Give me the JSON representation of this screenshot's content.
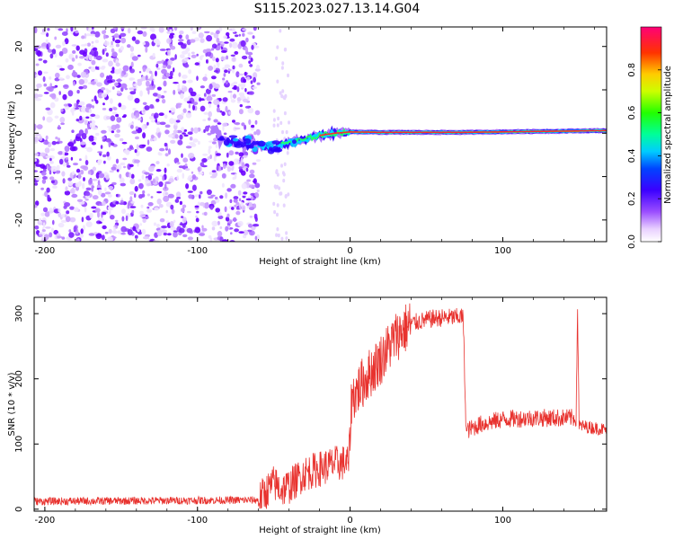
{
  "title": "S115.2023.027.13.14.G04",
  "colors": {
    "snr_line": "#e8322e",
    "ridge": "#ff2a2a"
  },
  "chart_data": [
    {
      "type": "heatmap",
      "xlabel": "Height of straight line (km)",
      "ylabel": "Frequency (Hz)",
      "xlim": [
        -207,
        168
      ],
      "ylim": [
        -25,
        24.5
      ],
      "xticks": [
        -200,
        -100,
        0,
        100
      ],
      "yticks": [
        -20,
        -10,
        0,
        10,
        20
      ],
      "colorbar": {
        "label": "Normalized spectral amplitude",
        "range": [
          0,
          1
        ],
        "ticks": [
          0.0,
          0.2,
          0.4,
          0.6,
          0.8
        ]
      },
      "noise_region_x": [
        -207,
        -60
      ],
      "ridge": [
        {
          "x": -85,
          "f": -1.5
        },
        {
          "x": -70,
          "f": -2.5
        },
        {
          "x": -60,
          "f": -2.8
        },
        {
          "x": -50,
          "f": -3.5
        },
        {
          "x": -40,
          "f": -2.0
        },
        {
          "x": -30,
          "f": -1.5
        },
        {
          "x": -20,
          "f": -0.5
        },
        {
          "x": -10,
          "f": 0.0
        },
        {
          "x": 0,
          "f": 0.3
        },
        {
          "x": 20,
          "f": 0.2
        },
        {
          "x": 75,
          "f": 0.2
        },
        {
          "x": 120,
          "f": 0.4
        },
        {
          "x": 168,
          "f": 0.6
        }
      ]
    },
    {
      "type": "line",
      "xlabel": "Height of straight line (km)",
      "ylabel": "SNR (10 * v/v)",
      "xlim": [
        -207,
        168
      ],
      "ylim": [
        -3,
        325
      ],
      "xticks": [
        -200,
        -100,
        0,
        100
      ],
      "yticks": [
        0,
        100,
        200,
        300
      ],
      "series": [
        {
          "segments": [
            {
              "x": -207,
              "y": 12
            },
            {
              "x": -60,
              "y": 14
            },
            {
              "x": -50,
              "y": 40
            },
            {
              "x": -45,
              "y": 30
            },
            {
              "x": -40,
              "y": 35
            },
            {
              "x": -30,
              "y": 55
            },
            {
              "x": -20,
              "y": 62
            },
            {
              "x": -10,
              "y": 70
            },
            {
              "x": -1,
              "y": 72
            },
            {
              "x": 1,
              "y": 170
            },
            {
              "x": 10,
              "y": 200
            },
            {
              "x": 20,
              "y": 230
            },
            {
              "x": 30,
              "y": 265
            },
            {
              "x": 40,
              "y": 285
            },
            {
              "x": 55,
              "y": 293
            },
            {
              "x": 74,
              "y": 295
            },
            {
              "x": 76,
              "y": 120
            },
            {
              "x": 85,
              "y": 130
            },
            {
              "x": 100,
              "y": 138
            },
            {
              "x": 120,
              "y": 140
            },
            {
              "x": 148,
              "y": 140
            },
            {
              "x": 149,
              "y": 310
            },
            {
              "x": 150,
              "y": 128
            },
            {
              "x": 168,
              "y": 122
            }
          ]
        }
      ]
    }
  ]
}
